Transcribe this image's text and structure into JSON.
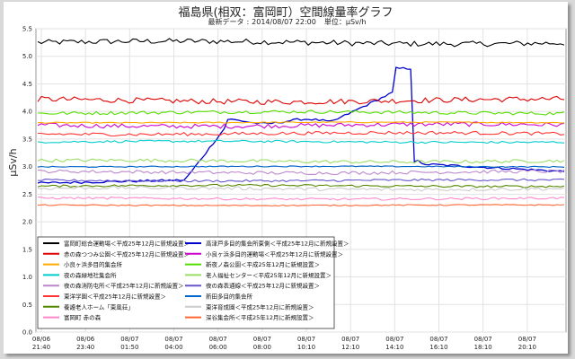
{
  "header": {
    "title": "福島県(相双：富岡町）空間線量率グラフ",
    "latest_label": "最新データ",
    "latest_time": "2014/08/07 22:00",
    "unit_label": "単位：μSv/h"
  },
  "chart_data": {
    "type": "line",
    "title": "福島県(相双：富岡町）空間線量率グラフ",
    "xlabel": "",
    "ylabel": "μSv/h",
    "ylim": [
      0.0,
      5.5
    ],
    "yticks": [
      "0.0",
      "0.5",
      "1.0",
      "1.5",
      "2.0",
      "2.5",
      "3.0",
      "3.5",
      "4.0",
      "4.5",
      "5.0",
      "5.5"
    ],
    "x_range": [
      "08/06 21:40",
      "08/07 22:00"
    ],
    "xticks": [
      {
        "date": "08/06",
        "time": "21:40"
      },
      {
        "date": "08/06",
        "time": "23:40"
      },
      {
        "date": "08/07",
        "time": "01:50"
      },
      {
        "date": "08/07",
        "time": "04:00"
      },
      {
        "date": "08/07",
        "time": "06:00"
      },
      {
        "date": "08/07",
        "time": "08:00"
      },
      {
        "date": "08/07",
        "time": "10:10"
      },
      {
        "date": "08/07",
        "time": "12:10"
      },
      {
        "date": "08/07",
        "time": "14:10"
      },
      {
        "date": "08/07",
        "time": "16:10"
      },
      {
        "date": "08/07",
        "time": "18:10"
      },
      {
        "date": "08/07",
        "time": "20:10"
      }
    ],
    "grid": true,
    "legend_position": "bottom",
    "series": [
      {
        "name": "富岡町総合運動場＜平成25年12月に新規設置＞",
        "color": "#000000",
        "level": 5.25,
        "noise": 0.05
      },
      {
        "name": "高津戸多目的集会所東側＜平成25年12月に新規設置＞",
        "color": "#0000cc",
        "profile": "spike",
        "noise": 0.02
      },
      {
        "name": "赤の森つつみ公園＜平成25年12月に新規設置＞",
        "color": "#dd0000",
        "level": 4.2,
        "noise": 0.05
      },
      {
        "name": "小良ヶ浜多目的運動場＜平成25年12月に新規設置＞",
        "color": "#cc00cc",
        "level": 3.75,
        "noise": 0.04
      },
      {
        "name": "小良ヶ浜多目的集会所",
        "color": "#ffaa00",
        "level": 3.8,
        "noise": 0.01
      },
      {
        "name": "新夜ノ森公園＜平成25年12月に新規設置＞",
        "color": "#55dd00",
        "level": 3.98,
        "noise": 0.03
      },
      {
        "name": "夜の森緑地社集会所",
        "color": "#00cccc",
        "level": 3.45,
        "noise": 0.02
      },
      {
        "name": "老人福祉センター＜平成25年12月に新規設置＞",
        "color": "#99dd66",
        "level": 3.1,
        "noise": 0.03
      },
      {
        "name": "夜の森消防屯所＜平成25年12月に新規設置＞",
        "color": "#bb88cc",
        "level": 2.9,
        "noise": 0.03
      },
      {
        "name": "夜の森表通線＜平成25年12月に新規設置＞",
        "color": "#6655cc",
        "level": 2.75,
        "noise": 0.02
      },
      {
        "name": "東洋学園＜平成25年12月に新規設置＞",
        "color": "#ff3333",
        "level": 3.6,
        "noise": 0.03
      },
      {
        "name": "新田多目的集会所",
        "color": "#0066cc",
        "level": 3.0,
        "noise": 0.01
      },
      {
        "name": "養護老人ホーム「東風荘」",
        "color": "#558800",
        "level": 2.65,
        "noise": 0.02
      },
      {
        "name": "東洋育成園＜平成25年12月に新規設置＞",
        "color": "#cccccc",
        "level": 2.6,
        "noise": 0.03
      },
      {
        "name": "富岡町 赤の森",
        "color": "#ff88cc",
        "level": 2.42,
        "noise": 0.02
      },
      {
        "name": "深谷集会所＜平成25年12月に新規設置＞",
        "color": "#ff6633",
        "level": 2.3,
        "noise": 0.01
      }
    ]
  }
}
